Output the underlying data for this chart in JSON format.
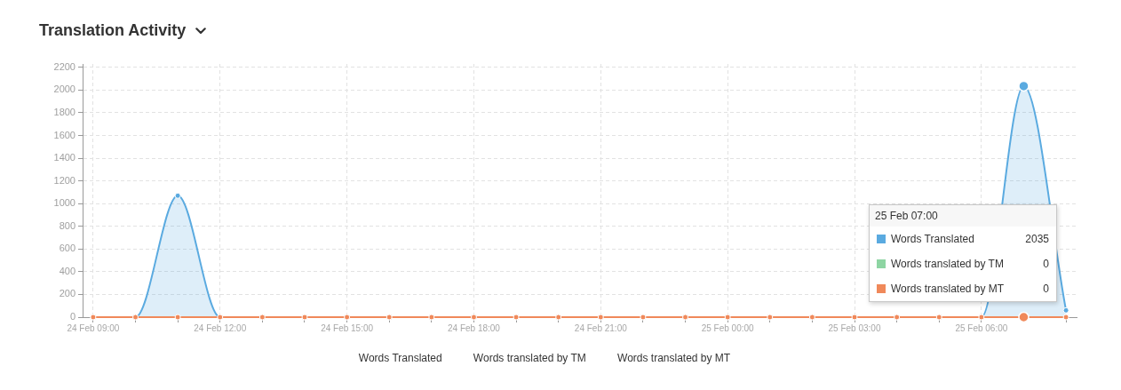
{
  "chart_data": {
    "type": "area",
    "title": "Translation Activity",
    "categories": [
      "24 Feb 09:00",
      null,
      null,
      "24 Feb 12:00",
      null,
      null,
      "24 Feb 15:00",
      null,
      null,
      "24 Feb 18:00",
      null,
      null,
      "24 Feb 21:00",
      null,
      null,
      "25 Feb 00:00",
      null,
      null,
      "25 Feb 03:00",
      null,
      null,
      "25 Feb 06:00",
      null,
      null
    ],
    "ylim": [
      0,
      2230
    ],
    "yticks": [
      0,
      200,
      400,
      600,
      800,
      1000,
      1200,
      1400,
      1600,
      1800,
      2000,
      2200
    ],
    "grid": true,
    "legend": "bottom",
    "marker": "circle",
    "line_style": "solid",
    "series": [
      {
        "name": "Words Translated",
        "color": "#5aaae0",
        "values": [
          0,
          0,
          1070,
          0,
          0,
          0,
          0,
          0,
          0,
          0,
          0,
          0,
          0,
          0,
          0,
          0,
          0,
          0,
          0,
          0,
          0,
          0,
          2035,
          60
        ]
      },
      {
        "name": "Words translated by TM",
        "type": "line",
        "color": "#8ed5a3",
        "values": [
          null,
          null,
          null,
          null,
          null,
          null,
          null,
          null,
          null,
          null,
          null,
          null,
          null,
          null,
          null,
          null,
          null,
          null,
          null,
          null,
          null,
          null,
          null,
          null
        ]
      },
      {
        "name": "Words translated by MT",
        "type": "line",
        "color": "#f0895a",
        "values": [
          0,
          0,
          0,
          0,
          0,
          0,
          0,
          0,
          0,
          0,
          0,
          0,
          0,
          0,
          0,
          0,
          0,
          0,
          0,
          0,
          0,
          0,
          0,
          0
        ]
      }
    ],
    "annotations": [
      "25 Feb 07:00",
      "2035",
      "0",
      "0"
    ]
  }
}
